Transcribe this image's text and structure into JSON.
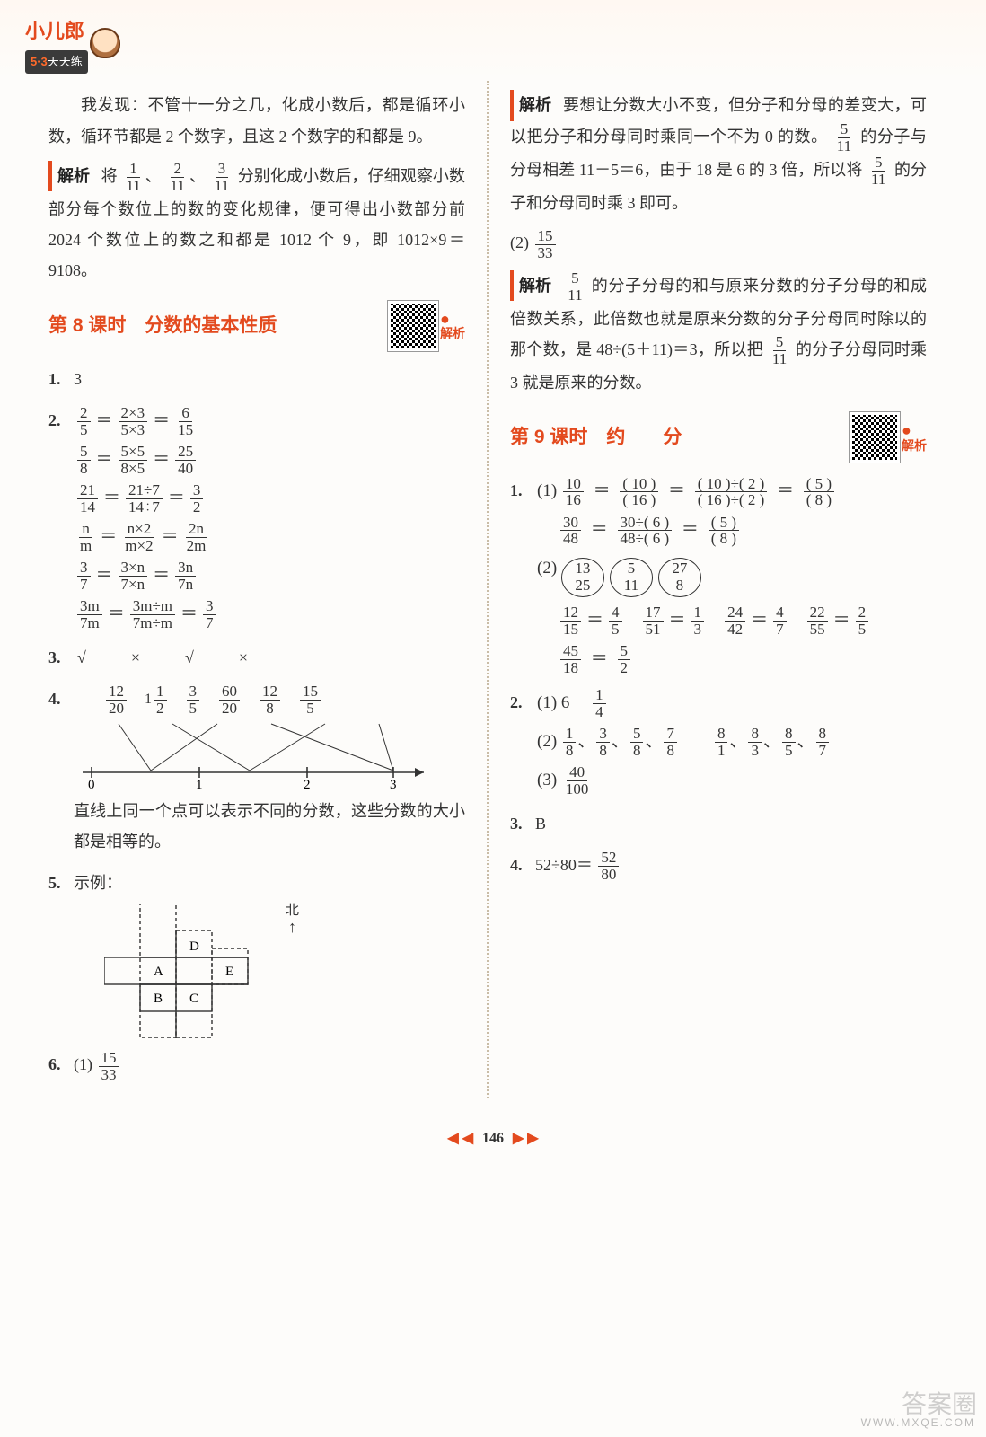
{
  "header": {
    "brand": "小儿郎",
    "subline_a": "5·3",
    "subline_b": "天天练"
  },
  "left": {
    "intro": "我发现：不管十一分之几，化成小数后，都是循环小数，循环节都是 2 个数字，且这 2 个数字的和都是 9。",
    "analysis_label": "解析",
    "analysis_text_a": "将",
    "analysis_text_b": "分别化成小数后，仔细观察小数部分每个数位上的数的变化规律，便可得出小数部分前 2024 个数位上的数之和都是 1012 个 9，即 1012×9＝9108。",
    "lesson8_title": "第 8 课时　分数的基本性质",
    "qr_label": "解析",
    "q1": {
      "num": "1.",
      "ans": "3"
    },
    "q2": {
      "num": "2.",
      "rows": [
        {
          "a_n": "2",
          "a_d": "5",
          "mid_n": "2×3",
          "mid_d": "5×3",
          "r_n": "6",
          "r_d": "15"
        },
        {
          "a_n": "5",
          "a_d": "8",
          "mid_n": "5×5",
          "mid_d": "8×5",
          "r_n": "25",
          "r_d": "40"
        },
        {
          "a_n": "21",
          "a_d": "14",
          "mid_n": "21÷7",
          "mid_d": "14÷7",
          "r_n": "3",
          "r_d": "2"
        },
        {
          "a_n": "n",
          "a_d": "m",
          "mid_n": "n×2",
          "mid_d": "m×2",
          "r_n": "2n",
          "r_d": "2m"
        },
        {
          "a_n": "3",
          "a_d": "7",
          "mid_n": "3×n",
          "mid_d": "7×n",
          "r_n": "3n",
          "r_d": "7n"
        },
        {
          "a_n": "3m",
          "a_d": "7m",
          "mid_n": "3m÷m",
          "mid_d": "7m÷m",
          "r_n": "3",
          "r_d": "7"
        }
      ]
    },
    "q3": {
      "num": "3.",
      "marks": "√　×　√　×"
    },
    "q4": {
      "num": "4.",
      "labels": [
        {
          "n": "12",
          "d": "20"
        },
        {
          "whole": "1",
          "n": "1",
          "d": "2"
        },
        {
          "n": "3",
          "d": "5"
        },
        {
          "n": "60",
          "d": "20"
        },
        {
          "n": "12",
          "d": "8"
        },
        {
          "n": "15",
          "d": "5"
        }
      ],
      "ticks": [
        "0",
        "1",
        "2",
        "3"
      ],
      "note": "直线上同一个点可以表示不同的分数，这些分数的大小都是相等的。"
    },
    "q5": {
      "num": "5.",
      "label": "示例：",
      "north": "北",
      "cells": [
        "A",
        "B",
        "C",
        "D",
        "E"
      ]
    },
    "q6": {
      "num": "6.",
      "part": "(1)",
      "n": "15",
      "d": "33"
    }
  },
  "right": {
    "analysis_label": "解析",
    "top_analysis": "要想让分数大小不变，但分子和分母的差变大，可以把分子和分母同时乘同一个不为 0 的数。",
    "top_analysis_tail_a": "的分子与分母相差 11－5＝6，由于 18 是 6 的 3 倍，所以将",
    "top_analysis_tail_b": "的分子和分母同时乘 3 即可。",
    "part2": {
      "label": "(2)",
      "n": "15",
      "d": "33"
    },
    "mid_analysis_a": "的分子分母的和与原来分数的分子分母的和成倍数关系，此倍数也就是原来分数的分子分母同时除以的那个数，是 48÷(5＋11)＝3，所以把",
    "mid_analysis_b": "的分子分母同时乘 3 就是原来的分数。",
    "lesson9_title": "第 9 课时　约　　分",
    "qr_label": "解析",
    "q1": {
      "num": "1.",
      "line1_part": "(1)",
      "row1": {
        "a_n": "10",
        "a_d": "16",
        "b_n": "( 10 )",
        "b_d": "( 16 )",
        "c_n": "( 10 )÷( 2 )",
        "c_d": "( 16 )÷( 2 )",
        "r_n": "( 5 )",
        "r_d": "( 8 )"
      },
      "row2": {
        "a_n": "30",
        "a_d": "48",
        "b_n": "30÷( 6 )",
        "b_d": "48÷( 6 )",
        "r_n": "( 5 )",
        "r_d": "( 8 )"
      },
      "line3_part": "(2)",
      "circled": [
        {
          "n": "13",
          "d": "25"
        },
        {
          "n": "5",
          "d": "11"
        },
        {
          "n": "27",
          "d": "8"
        }
      ],
      "row4": [
        {
          "a_n": "12",
          "a_d": "15",
          "r_n": "4",
          "r_d": "5"
        },
        {
          "a_n": "17",
          "a_d": "51",
          "r_n": "1",
          "r_d": "3"
        },
        {
          "a_n": "24",
          "a_d": "42",
          "r_n": "4",
          "r_d": "7"
        },
        {
          "a_n": "22",
          "a_d": "55",
          "r_n": "2",
          "r_d": "5"
        }
      ],
      "row5": {
        "a_n": "45",
        "a_d": "18",
        "r_n": "5",
        "r_d": "2"
      }
    },
    "q2": {
      "num": "2.",
      "p1_label": "(1)",
      "p1_a": "6",
      "p1_n": "1",
      "p1_d": "4",
      "p2_label": "(2)",
      "set_a": [
        {
          "n": "1",
          "d": "8"
        },
        {
          "n": "3",
          "d": "8"
        },
        {
          "n": "5",
          "d": "8"
        },
        {
          "n": "7",
          "d": "8"
        }
      ],
      "set_b": [
        {
          "n": "8",
          "d": "1"
        },
        {
          "n": "8",
          "d": "3"
        },
        {
          "n": "8",
          "d": "5"
        },
        {
          "n": "8",
          "d": "7"
        }
      ],
      "p3_label": "(3)",
      "p3_n": "40",
      "p3_d": "100"
    },
    "q3": {
      "num": "3.",
      "ans": "B"
    },
    "q4": {
      "num": "4.",
      "lhs": "52÷80＝",
      "n": "52",
      "d": "80"
    }
  },
  "footer": {
    "page": "146"
  },
  "watermark": {
    "main": "答案圈",
    "sub": "WWW.MXQE.COM"
  },
  "colors": {
    "accent": "#e34a1e",
    "text": "#333333",
    "divider": "#c9bca6",
    "bg": "#fdfcfa"
  }
}
